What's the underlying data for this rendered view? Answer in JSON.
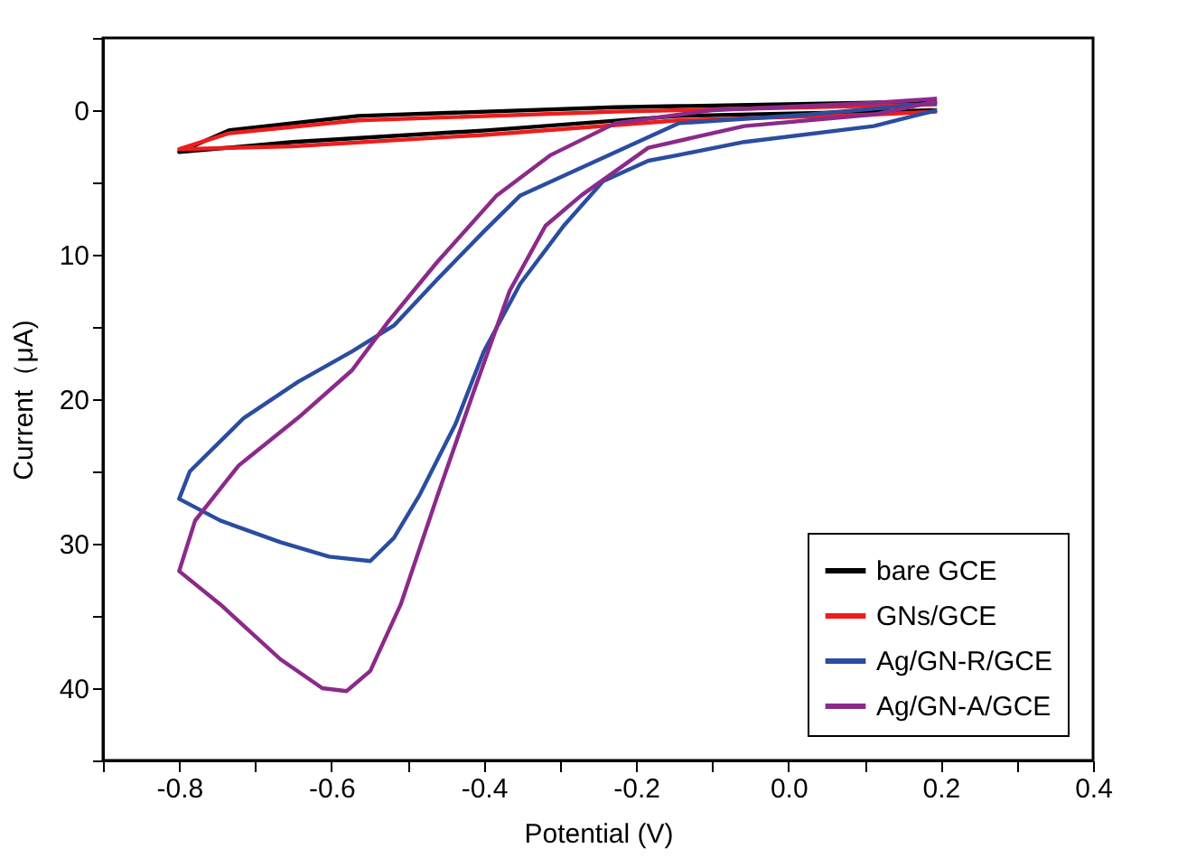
{
  "chart_data": {
    "type": "line",
    "xlabel": "Potential (V)",
    "ylabel": "Current（μA)",
    "xlim": [
      -0.9,
      0.4
    ],
    "ylim": [
      45,
      -5
    ],
    "xticks": [
      {
        "value": -0.9,
        "label": null
      },
      -0.8,
      {
        "value": -0.7,
        "label": null
      },
      -0.6,
      {
        "value": -0.5,
        "label": null
      },
      -0.4,
      {
        "value": -0.3,
        "label": null
      },
      -0.2,
      {
        "value": -0.1,
        "label": null
      },
      {
        "value": 0,
        "label": "0.0"
      },
      {
        "value": 0.1,
        "label": null
      },
      0.2,
      {
        "value": 0.3,
        "label": null
      },
      0.4
    ],
    "yticks": [
      {
        "value": -5,
        "label": null
      },
      0,
      {
        "value": 5,
        "label": null
      },
      10,
      {
        "value": 15,
        "label": null
      },
      20,
      {
        "value": 25,
        "label": null
      },
      30,
      {
        "value": 35,
        "label": null
      },
      40,
      {
        "value": 45,
        "label": null
      }
    ],
    "grid": false,
    "legend": "bottom right",
    "line_style": "solid",
    "marker": "none",
    "series": [
      {
        "name": "bare GCE",
        "color": "#000000",
        "x": [
          0.195,
          0.112,
          -0.144,
          -0.397,
          -0.651,
          -0.8,
          -0.735,
          -0.565,
          -0.227,
          0.195
        ],
        "values": [
          0,
          0.1,
          0.4,
          1.4,
          2.2,
          2.9,
          1.4,
          0.4,
          -0.2,
          -0.6
        ]
      },
      {
        "name": "GNs/GCE",
        "color": "#ee1c1c",
        "x": [
          0.195,
          0.112,
          -0.144,
          -0.397,
          -0.651,
          -0.8,
          -0.735,
          -0.565,
          -0.227,
          0.195
        ],
        "values": [
          0.1,
          0.3,
          0.7,
          1.7,
          2.5,
          2.7,
          1.6,
          0.7,
          0.1,
          -0.4
        ]
      },
      {
        "name": "Ag/GN-R/GCE",
        "color": "#2a4da0",
        "x": [
          0.195,
          0.112,
          -0.058,
          -0.144,
          -0.184,
          -0.243,
          -0.295,
          -0.352,
          -0.4,
          -0.437,
          -0.485,
          -0.518,
          -0.549,
          -0.603,
          -0.667,
          -0.746,
          -0.8,
          -0.786,
          -0.715,
          -0.644,
          -0.573,
          -0.518,
          -0.461,
          -0.4,
          -0.352,
          -0.144,
          0.027,
          0.195
        ],
        "values": [
          0,
          1.1,
          2.2,
          3.1,
          3.5,
          4.9,
          8,
          12,
          16.7,
          21.7,
          26.7,
          29.6,
          31.2,
          30.9,
          29.9,
          28.4,
          26.9,
          25,
          21.3,
          18.8,
          16.7,
          14.9,
          11.7,
          8.4,
          5.9,
          0.9,
          0.3,
          -0.5
        ]
      },
      {
        "name": "Ag/GN-A/GCE",
        "color": "#8b2a8a",
        "x": [
          0.195,
          0.112,
          -0.058,
          -0.184,
          -0.272,
          -0.319,
          -0.366,
          -0.414,
          -0.461,
          -0.509,
          -0.549,
          -0.58,
          -0.612,
          -0.667,
          -0.746,
          -0.8,
          -0.779,
          -0.722,
          -0.644,
          -0.573,
          -0.525,
          -0.461,
          -0.383,
          -0.312,
          -0.227,
          -0.1,
          0.112,
          0.195
        ],
        "values": [
          -0.6,
          0.3,
          1.1,
          2.6,
          5.9,
          8,
          12.5,
          19.6,
          26.7,
          34.2,
          38.8,
          40.2,
          40,
          38,
          34.2,
          31.9,
          28.4,
          24.6,
          21.3,
          18,
          14.6,
          10.5,
          5.9,
          3.1,
          0.9,
          0,
          -0.5,
          -0.8
        ]
      }
    ]
  }
}
